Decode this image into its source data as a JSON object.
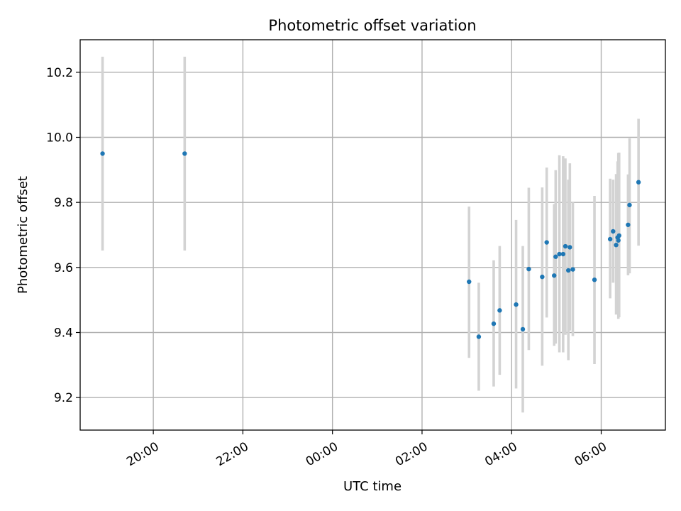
{
  "chart_data": {
    "type": "scatter",
    "title": "Photometric offset variation",
    "xlabel": "UTC time",
    "ylabel": "Photometric offset",
    "x_ticks": [
      "20:00",
      "22:00",
      "00:00",
      "02:00",
      "04:00",
      "06:00"
    ],
    "y_ticks": [
      "9.2",
      "9.4",
      "9.6",
      "9.8",
      "10.0",
      "10.2"
    ],
    "xlim": [
      "18:22",
      "07:26"
    ],
    "ylim": [
      9.1,
      10.3
    ],
    "grid": true,
    "legend": "none",
    "colors": {
      "points": "#1f77b4",
      "error_bars": "#d3d3d3",
      "grid": "#b0b0b0"
    },
    "points": [
      {
        "x": "18:52",
        "y": 9.95,
        "y_low": 9.652,
        "y_high": 10.248
      },
      {
        "x": "20:42",
        "y": 9.95,
        "y_low": 9.652,
        "y_high": 10.248
      },
      {
        "x": "03:03",
        "y": 9.556,
        "y_low": 9.322,
        "y_high": 9.787
      },
      {
        "x": "03:16",
        "y": 9.387,
        "y_low": 9.221,
        "y_high": 9.553
      },
      {
        "x": "03:36",
        "y": 9.427,
        "y_low": 9.234,
        "y_high": 9.622
      },
      {
        "x": "03:44",
        "y": 9.468,
        "y_low": 9.27,
        "y_high": 9.666
      },
      {
        "x": "04:06",
        "y": 9.486,
        "y_low": 9.228,
        "y_high": 9.746
      },
      {
        "x": "04:15",
        "y": 9.41,
        "y_low": 9.154,
        "y_high": 9.666
      },
      {
        "x": "04:23",
        "y": 9.595,
        "y_low": 9.346,
        "y_high": 9.845
      },
      {
        "x": "04:41",
        "y": 9.571,
        "y_low": 9.298,
        "y_high": 9.846
      },
      {
        "x": "04:47",
        "y": 9.677,
        "y_low": 9.446,
        "y_high": 9.907
      },
      {
        "x": "04:57",
        "y": 9.575,
        "y_low": 9.359,
        "y_high": 9.795
      },
      {
        "x": "04:59",
        "y": 9.633,
        "y_low": 9.366,
        "y_high": 9.899
      },
      {
        "x": "05:04",
        "y": 9.641,
        "y_low": 9.339,
        "y_high": 9.945
      },
      {
        "x": "05:09",
        "y": 9.641,
        "y_low": 9.339,
        "y_high": 9.942
      },
      {
        "x": "05:12",
        "y": 9.665,
        "y_low": 9.393,
        "y_high": 9.935
      },
      {
        "x": "05:16",
        "y": 9.591,
        "y_low": 9.315,
        "y_high": 9.87
      },
      {
        "x": "05:18",
        "y": 9.662,
        "y_low": 9.406,
        "y_high": 9.92
      },
      {
        "x": "05:22",
        "y": 9.594,
        "y_low": 9.389,
        "y_high": 9.8
      },
      {
        "x": "05:51",
        "y": 9.562,
        "y_low": 9.303,
        "y_high": 9.82
      },
      {
        "x": "06:12",
        "y": 9.687,
        "y_low": 9.505,
        "y_high": 9.873
      },
      {
        "x": "06:16",
        "y": 9.711,
        "y_low": 9.553,
        "y_high": 9.87
      },
      {
        "x": "06:20",
        "y": 9.669,
        "y_low": 9.455,
        "y_high": 9.887
      },
      {
        "x": "06:22",
        "y": 9.692,
        "y_low": 9.461,
        "y_high": 9.926
      },
      {
        "x": "06:23",
        "y": 9.683,
        "y_low": 9.442,
        "y_high": 9.952
      },
      {
        "x": "06:24",
        "y": 9.698,
        "y_low": 9.447,
        "y_high": 9.953
      },
      {
        "x": "06:36",
        "y": 9.731,
        "y_low": 9.576,
        "y_high": 9.886
      },
      {
        "x": "06:38",
        "y": 9.792,
        "y_low": 9.582,
        "y_high": 9.997
      },
      {
        "x": "06:50",
        "y": 9.862,
        "y_low": 9.667,
        "y_high": 10.057
      }
    ]
  }
}
